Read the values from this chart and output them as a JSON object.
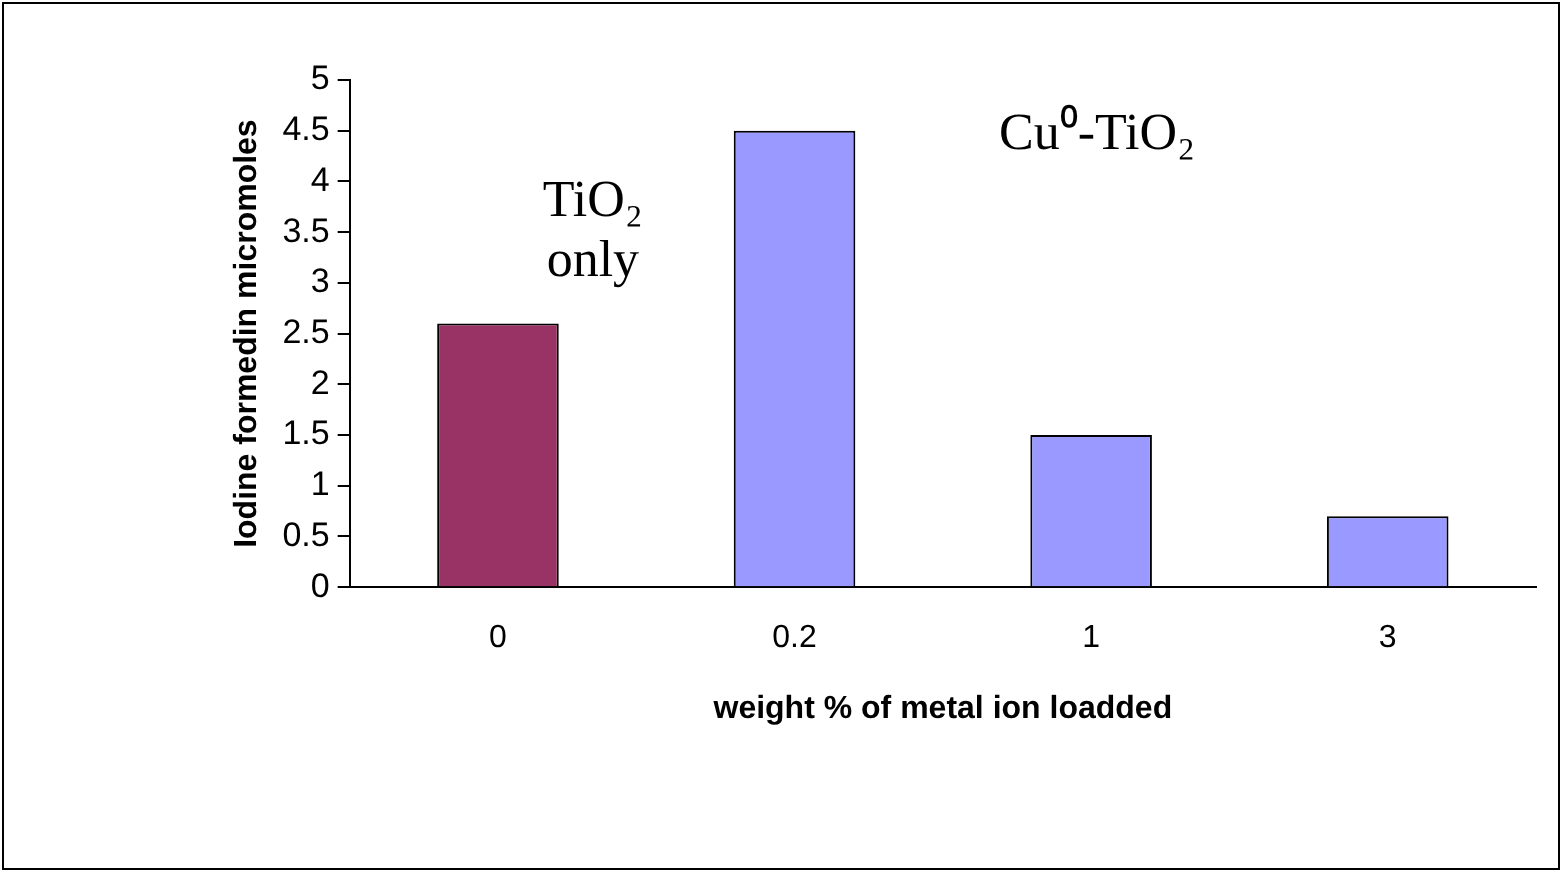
{
  "chart_data": {
    "type": "bar",
    "xlabel": "weight % of metal ion loadded",
    "ylabel": "Iodine formedin micromoles",
    "categories": [
      "0",
      "0.2",
      "1",
      "3"
    ],
    "values": [
      2.6,
      4.5,
      1.5,
      0.7
    ],
    "colors": [
      "#993366",
      "#9999ff",
      "#9999ff",
      "#9999ff"
    ],
    "ylim": [
      0,
      5
    ],
    "yticks": [
      0,
      0.5,
      1,
      1.5,
      2,
      2.5,
      3,
      3.5,
      4,
      4.5,
      5
    ],
    "grid": false,
    "legend": false,
    "annotations": [
      "TiO₂ only",
      "Cu⁰-TiO₂"
    ]
  }
}
